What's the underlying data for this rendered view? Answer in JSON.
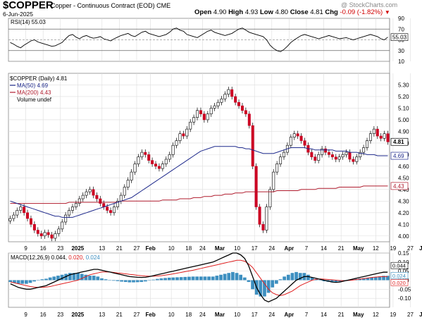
{
  "header": {
    "symbol": "$COPPER",
    "description": "Copper - Continuous Contract (EOD)",
    "exchange": "CME",
    "date": "6-Jun-2025",
    "watermark": "@ StockCharts.com",
    "open_label": "Open",
    "open": "4.90",
    "high_label": "High",
    "high": "4.93",
    "low_label": "Low",
    "low": "4.80",
    "close_label": "Close",
    "close": "4.81",
    "chg_label": "Chg",
    "chg": "-0.09 (-1.82%)"
  },
  "colors": {
    "up_candle": "#ffffff",
    "down_candle": "#cc0022",
    "ma50": "#1f2a8c",
    "ma200": "#b01c2e",
    "rsi": "#000000",
    "macd": "#000000",
    "signal": "#e02020",
    "histogram": "#3d8fc0",
    "grid": "#dddddd"
  },
  "chart_data": [
    {
      "type": "line",
      "panel": "RSI",
      "legend": "RSI(14) 55.03",
      "ylim": [
        10,
        90
      ],
      "ticks": [
        "90",
        "70",
        "50",
        "30",
        "10"
      ],
      "last_value_label": "55.03",
      "reference_lines": [
        70,
        50,
        30
      ],
      "values": [
        45,
        42,
        38,
        35,
        40,
        44,
        48,
        50,
        46,
        44,
        42,
        40,
        38,
        39,
        42,
        45,
        52,
        58,
        60,
        55,
        52,
        56,
        58,
        55,
        53,
        54,
        56,
        52,
        50,
        48,
        52,
        55,
        58,
        60,
        62,
        58,
        56,
        60,
        64,
        66,
        62,
        60,
        58,
        56,
        58,
        60,
        64,
        70,
        72,
        68,
        66,
        60,
        58,
        56,
        54,
        58,
        62,
        66,
        68,
        64,
        62,
        60,
        58,
        60,
        62,
        66,
        70,
        72,
        68,
        64,
        62,
        60,
        58,
        56,
        50,
        40,
        34,
        30,
        28,
        32,
        38,
        45,
        50,
        54,
        58,
        60,
        58,
        56,
        54,
        52,
        54,
        56,
        58,
        56,
        54,
        52,
        53,
        54,
        52,
        50,
        52,
        54,
        56,
        58,
        60,
        58,
        56,
        52,
        50,
        55
      ]
    },
    {
      "type": "line",
      "panel": "Price",
      "legend": [
        "$COPPER (Daily) 4.81",
        "MA(50) 4.69",
        "MA(200) 4.43",
        "Volume undef"
      ],
      "ylim": [
        3.95,
        5.4
      ],
      "yticks": [
        "5.30",
        "5.20",
        "5.10",
        "5.00",
        "4.90",
        "4.80",
        "4.70",
        "4.60",
        "4.50",
        "4.40",
        "4.30",
        "4.20",
        "4.10",
        "4.00"
      ],
      "x_labels": [
        "9",
        "16",
        "23",
        "2025",
        "13",
        "21",
        "27",
        "Feb",
        "10",
        "18",
        "24",
        "Mar",
        "10",
        "17",
        "24",
        "Apr",
        "7",
        "14",
        "21",
        "May",
        "12",
        "19",
        "27",
        "Jun"
      ],
      "x_positions": [
        5,
        10,
        15,
        20,
        27,
        32,
        37,
        41,
        47,
        52,
        56,
        61,
        66,
        71,
        76,
        81,
        86,
        91,
        96,
        101,
        106,
        111,
        116,
        120
      ],
      "close_values": [
        4.15,
        4.18,
        4.22,
        4.25,
        4.2,
        4.15,
        4.1,
        4.05,
        4.02,
        4.0,
        4.03,
        4.01,
        3.98,
        4.02,
        4.06,
        4.12,
        4.18,
        4.22,
        4.25,
        4.28,
        4.32,
        4.35,
        4.38,
        4.4,
        4.35,
        4.32,
        4.28,
        4.25,
        4.22,
        4.2,
        4.25,
        4.3,
        4.35,
        4.42,
        4.48,
        4.55,
        4.62,
        4.68,
        4.72,
        4.7,
        4.65,
        4.62,
        4.6,
        4.58,
        4.62,
        4.66,
        4.7,
        4.78,
        4.82,
        4.88,
        4.86,
        4.92,
        4.98,
        5.02,
        5.08,
        5.05,
        5.0,
        5.05,
        5.1,
        5.12,
        5.15,
        5.18,
        5.22,
        5.26,
        5.2,
        5.15,
        5.12,
        5.08,
        5.05,
        4.95,
        4.6,
        4.25,
        4.1,
        4.05,
        4.25,
        4.4,
        4.55,
        4.62,
        4.68,
        4.72,
        4.78,
        4.85,
        4.88,
        4.86,
        4.82,
        4.78,
        4.72,
        4.68,
        4.65,
        4.7,
        4.75,
        4.72,
        4.7,
        4.68,
        4.66,
        4.68,
        4.7,
        4.72,
        4.66,
        4.64,
        4.68,
        4.72,
        4.76,
        4.82,
        4.88,
        4.92,
        4.86,
        4.84,
        4.88,
        4.81
      ],
      "ma50_values": [
        4.3,
        4.29,
        4.28,
        4.27,
        4.26,
        4.25,
        4.24,
        4.23,
        4.22,
        4.21,
        4.2,
        4.19,
        4.18,
        4.17,
        4.17,
        4.16,
        4.16,
        4.16,
        4.16,
        4.17,
        4.18,
        4.19,
        4.2,
        4.21,
        4.22,
        4.23,
        4.24,
        4.25,
        4.26,
        4.27,
        4.28,
        4.29,
        4.3,
        4.31,
        4.32,
        4.33,
        4.35,
        4.37,
        4.39,
        4.41,
        4.43,
        4.45,
        4.47,
        4.49,
        4.51,
        4.53,
        4.55,
        4.57,
        4.59,
        4.61,
        4.63,
        4.65,
        4.67,
        4.69,
        4.71,
        4.73,
        4.74,
        4.75,
        4.76,
        4.77,
        4.77,
        4.77,
        4.77,
        4.77,
        4.77,
        4.77,
        4.76,
        4.76,
        4.75,
        4.75,
        4.74,
        4.73,
        4.72,
        4.71,
        4.71,
        4.71,
        4.71,
        4.72,
        4.73,
        4.74,
        4.75,
        4.76,
        4.76,
        4.76,
        4.76,
        4.76,
        4.75,
        4.75,
        4.74,
        4.74,
        4.74,
        4.74,
        4.74,
        4.74,
        4.73,
        4.73,
        4.73,
        4.73,
        4.72,
        4.72,
        4.72,
        4.71,
        4.71,
        4.7,
        4.7,
        4.7,
        4.69,
        4.69,
        4.69,
        4.69
      ],
      "ma200_values": [
        4.28,
        4.28,
        4.28,
        4.28,
        4.28,
        4.28,
        4.28,
        4.28,
        4.28,
        4.28,
        4.28,
        4.28,
        4.28,
        4.28,
        4.28,
        4.28,
        4.28,
        4.29,
        4.29,
        4.29,
        4.29,
        4.29,
        4.29,
        4.29,
        4.29,
        4.29,
        4.29,
        4.29,
        4.29,
        4.29,
        4.29,
        4.29,
        4.3,
        4.3,
        4.3,
        4.3,
        4.3,
        4.3,
        4.3,
        4.3,
        4.3,
        4.3,
        4.3,
        4.3,
        4.31,
        4.31,
        4.31,
        4.31,
        4.31,
        4.32,
        4.32,
        4.32,
        4.32,
        4.33,
        4.33,
        4.33,
        4.34,
        4.34,
        4.34,
        4.35,
        4.35,
        4.35,
        4.36,
        4.36,
        4.36,
        4.37,
        4.37,
        4.37,
        4.38,
        4.38,
        4.38,
        4.38,
        4.38,
        4.38,
        4.38,
        4.38,
        4.38,
        4.39,
        4.39,
        4.39,
        4.39,
        4.39,
        4.39,
        4.39,
        4.4,
        4.4,
        4.4,
        4.4,
        4.4,
        4.41,
        4.41,
        4.41,
        4.41,
        4.41,
        4.41,
        4.42,
        4.42,
        4.42,
        4.42,
        4.42,
        4.42,
        4.42,
        4.43,
        4.43,
        4.43,
        4.43,
        4.43,
        4.43,
        4.43,
        4.43
      ],
      "price_labels": [
        "4.81",
        "4.69",
        "4.43"
      ]
    },
    {
      "type": "line",
      "panel": "MACD",
      "legend": [
        "MACD(12,26,9) 0.044,",
        "0.020,",
        "0.024"
      ],
      "ylim": [
        -0.15,
        0.15
      ],
      "ticks": [
        "0.15",
        "0.10",
        "0.05",
        "0.00",
        "-0.05",
        "-0.10"
      ],
      "value_labels": [
        "0.044",
        "0.024",
        "0.020"
      ],
      "macd": [
        -0.02,
        -0.03,
        -0.04,
        -0.045,
        -0.05,
        -0.05,
        -0.045,
        -0.04,
        -0.035,
        -0.03,
        -0.02,
        -0.01,
        0.0,
        0.01,
        0.02,
        0.03,
        0.035,
        0.04,
        0.045,
        0.05,
        0.055,
        0.06,
        0.06,
        0.055,
        0.05,
        0.045,
        0.04,
        0.035,
        0.03,
        0.025,
        0.02,
        0.018,
        0.016,
        0.015,
        0.016,
        0.02,
        0.025,
        0.03,
        0.035,
        0.04,
        0.045,
        0.05,
        0.055,
        0.06,
        0.065,
        0.07,
        0.075,
        0.08,
        0.085,
        0.09,
        0.095,
        0.1,
        0.11,
        0.12,
        0.13,
        0.14,
        0.15,
        0.15,
        0.14,
        0.12,
        0.08,
        0.02,
        -0.04,
        -0.08,
        -0.11,
        -0.12,
        -0.11,
        -0.1,
        -0.08,
        -0.06,
        -0.04,
        -0.02,
        0.0,
        0.01,
        0.02,
        0.02,
        0.015,
        0.01,
        0.005,
        0.0,
        -0.005,
        -0.01,
        -0.012,
        -0.01,
        -0.005,
        0.0,
        0.005,
        0.01,
        0.015,
        0.02,
        0.025,
        0.03,
        0.035,
        0.04,
        0.044,
        0.044
      ],
      "signal": [
        -0.01,
        -0.015,
        -0.02,
        -0.025,
        -0.03,
        -0.035,
        -0.038,
        -0.04,
        -0.04,
        -0.038,
        -0.035,
        -0.03,
        -0.025,
        -0.02,
        -0.015,
        -0.01,
        -0.005,
        0.0,
        0.01,
        0.02,
        0.03,
        0.035,
        0.04,
        0.045,
        0.045,
        0.045,
        0.043,
        0.04,
        0.038,
        0.035,
        0.032,
        0.03,
        0.027,
        0.025,
        0.023,
        0.022,
        0.022,
        0.023,
        0.025,
        0.028,
        0.031,
        0.035,
        0.039,
        0.043,
        0.047,
        0.051,
        0.055,
        0.06,
        0.065,
        0.07,
        0.075,
        0.08,
        0.085,
        0.09,
        0.095,
        0.1,
        0.105,
        0.11,
        0.11,
        0.105,
        0.09,
        0.07,
        0.04,
        0.01,
        -0.02,
        -0.05,
        -0.07,
        -0.08,
        -0.085,
        -0.08,
        -0.07,
        -0.06,
        -0.045,
        -0.03,
        -0.02,
        -0.01,
        0.0,
        0.005,
        0.007,
        0.006,
        0.004,
        0.002,
        0.0,
        -0.002,
        -0.003,
        -0.002,
        0.0,
        0.003,
        0.006,
        0.009,
        0.012,
        0.015,
        0.017,
        0.019,
        0.02,
        0.02
      ]
    }
  ]
}
